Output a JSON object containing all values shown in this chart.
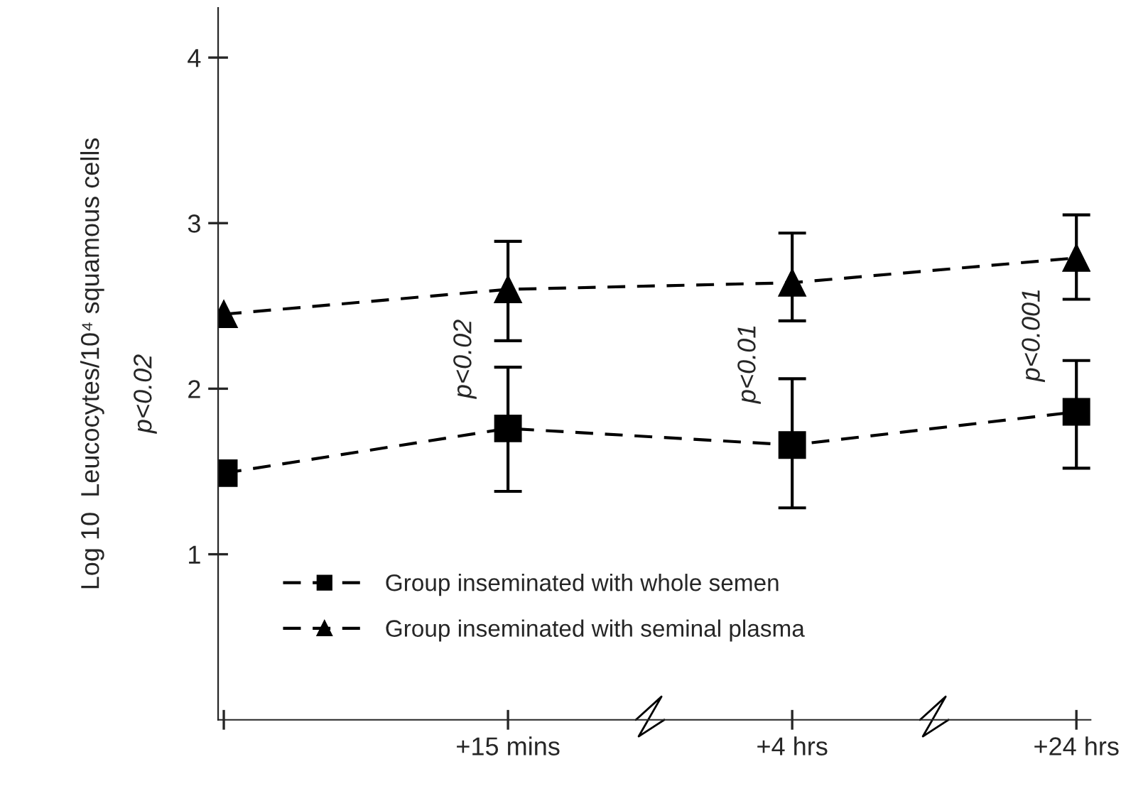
{
  "chart_data": {
    "type": "line",
    "ylabel": "Log 10  Leucocytes/10⁴ squamous cells",
    "categories": [
      null,
      "+15 mins",
      "+4 hrs",
      "+24 hrs"
    ],
    "ylim": [
      0,
      4.3
    ],
    "yticks": [
      1,
      2,
      3,
      4
    ],
    "series": [
      {
        "name": "Group inseminated with whole semen",
        "color": "#000000",
        "marker": "square",
        "line_style": "dashed",
        "values": [
          1.49,
          1.76,
          1.66,
          1.86
        ],
        "errors": [
          null,
          [
            1.38,
            2.13
          ],
          [
            1.28,
            2.06
          ],
          [
            1.52,
            2.17
          ]
        ]
      },
      {
        "name": "Group inseminated with seminal plasma",
        "color": "#000000",
        "marker": "triangle",
        "line_style": "dashed",
        "values": [
          2.45,
          2.6,
          2.64,
          2.79
        ],
        "errors": [
          null,
          [
            2.29,
            2.89
          ],
          [
            2.41,
            2.94
          ],
          [
            2.54,
            3.05
          ]
        ]
      }
    ],
    "annotations": [
      "p<0.02",
      "p<0.02",
      "p<0.01",
      "p<0.001"
    ],
    "legend": "bottom left",
    "grid": false
  }
}
